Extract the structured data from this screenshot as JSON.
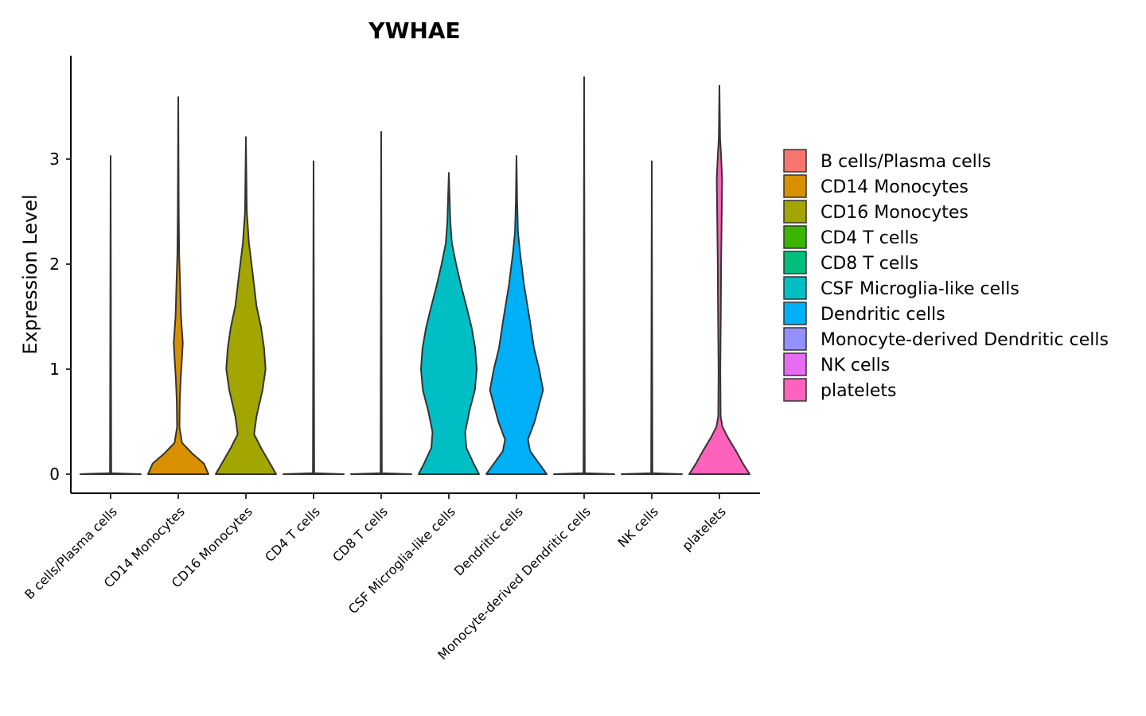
{
  "chart_data": {
    "type": "violin",
    "title": "YWHAE",
    "xlabel": "",
    "ylabel": "Expression Level",
    "ylim": [
      -0.18,
      3.95
    ],
    "yticks": [
      0,
      1,
      2,
      3
    ],
    "ytick_labels": [
      "0",
      "1",
      "2",
      "3"
    ],
    "grid": false,
    "legend_position": "right",
    "categories": [
      "B cells/Plasma cells",
      "CD14 Monocytes",
      "CD16 Monocytes",
      "CD4 T cells",
      "CD8 T cells",
      "CSF Microglia-like cells",
      "Dendritic cells",
      "Monocyte-derived Dendritic cells",
      "NK cells",
      "platelets"
    ],
    "series": [
      {
        "name": "B cells/Plasma cells",
        "color": "#F8766D",
        "max": 3.03,
        "profile": [
          [
            0,
            1.0
          ],
          [
            0.01,
            0.02
          ],
          [
            3.03,
            0.0
          ]
        ]
      },
      {
        "name": "CD14 Monocytes",
        "color": "#D89000",
        "max": 3.59,
        "profile": [
          [
            0,
            1.0
          ],
          [
            0.1,
            0.85
          ],
          [
            0.2,
            0.45
          ],
          [
            0.3,
            0.12
          ],
          [
            0.45,
            0.04
          ],
          [
            0.7,
            0.05
          ],
          [
            0.9,
            0.08
          ],
          [
            1.1,
            0.12
          ],
          [
            1.25,
            0.15
          ],
          [
            1.5,
            0.09
          ],
          [
            1.8,
            0.06
          ],
          [
            2.1,
            0.03
          ],
          [
            2.5,
            0.015
          ],
          [
            3.59,
            0.0
          ]
        ]
      },
      {
        "name": "CD16 Monocytes",
        "color": "#A3A500",
        "max": 3.21,
        "profile": [
          [
            0,
            1.0
          ],
          [
            0.1,
            0.8
          ],
          [
            0.25,
            0.5
          ],
          [
            0.38,
            0.27
          ],
          [
            0.55,
            0.35
          ],
          [
            0.8,
            0.55
          ],
          [
            1.0,
            0.65
          ],
          [
            1.2,
            0.6
          ],
          [
            1.4,
            0.5
          ],
          [
            1.6,
            0.35
          ],
          [
            1.9,
            0.23
          ],
          [
            2.2,
            0.1
          ],
          [
            2.5,
            0.03
          ],
          [
            3.21,
            0.0
          ]
        ]
      },
      {
        "name": "CD4 T cells",
        "color": "#39B600",
        "max": 2.98,
        "profile": [
          [
            0,
            1.0
          ],
          [
            0.01,
            0.02
          ],
          [
            2.98,
            0.0
          ]
        ]
      },
      {
        "name": "CD8 T cells",
        "color": "#00BF7D",
        "max": 3.26,
        "profile": [
          [
            0,
            1.0
          ],
          [
            0.01,
            0.02
          ],
          [
            3.26,
            0.0
          ]
        ]
      },
      {
        "name": "CSF Microglia-like cells",
        "color": "#00BFC4",
        "max": 2.87,
        "profile": [
          [
            0,
            1.0
          ],
          [
            0.1,
            0.82
          ],
          [
            0.25,
            0.58
          ],
          [
            0.4,
            0.54
          ],
          [
            0.6,
            0.68
          ],
          [
            0.8,
            0.86
          ],
          [
            1.0,
            0.92
          ],
          [
            1.2,
            0.87
          ],
          [
            1.4,
            0.75
          ],
          [
            1.6,
            0.58
          ],
          [
            1.8,
            0.4
          ],
          [
            2.0,
            0.24
          ],
          [
            2.2,
            0.1
          ],
          [
            2.4,
            0.05
          ],
          [
            2.6,
            0.03
          ],
          [
            2.87,
            0.0
          ]
        ]
      },
      {
        "name": "Dendritic cells",
        "color": "#00B0F6",
        "max": 3.03,
        "profile": [
          [
            0,
            1.0
          ],
          [
            0.1,
            0.75
          ],
          [
            0.22,
            0.45
          ],
          [
            0.33,
            0.38
          ],
          [
            0.5,
            0.6
          ],
          [
            0.8,
            0.88
          ],
          [
            1.0,
            0.75
          ],
          [
            1.2,
            0.58
          ],
          [
            1.5,
            0.42
          ],
          [
            1.8,
            0.25
          ],
          [
            2.1,
            0.12
          ],
          [
            2.3,
            0.05
          ],
          [
            2.6,
            0.02
          ],
          [
            3.03,
            0.0
          ]
        ]
      },
      {
        "name": "Monocyte-derived Dendritic cells",
        "color": "#9590FF",
        "max": 3.78,
        "profile": [
          [
            0,
            1.0
          ],
          [
            0.01,
            0.02
          ],
          [
            3.78,
            0.0
          ]
        ]
      },
      {
        "name": "NK cells",
        "color": "#E76BF3",
        "max": 2.98,
        "profile": [
          [
            0,
            1.0
          ],
          [
            0.01,
            0.02
          ],
          [
            2.98,
            0.0
          ]
        ]
      },
      {
        "name": "platelets",
        "color": "#FF62BC",
        "max": 3.7,
        "profile": [
          [
            0,
            1.0
          ],
          [
            0.1,
            0.78
          ],
          [
            0.22,
            0.55
          ],
          [
            0.35,
            0.28
          ],
          [
            0.45,
            0.1
          ],
          [
            0.55,
            0.04
          ],
          [
            1.0,
            0.03
          ],
          [
            1.5,
            0.045
          ],
          [
            2.0,
            0.055
          ],
          [
            2.5,
            0.075
          ],
          [
            2.8,
            0.09
          ],
          [
            3.0,
            0.06
          ],
          [
            3.2,
            0.02
          ],
          [
            3.7,
            0.0
          ]
        ]
      }
    ]
  }
}
